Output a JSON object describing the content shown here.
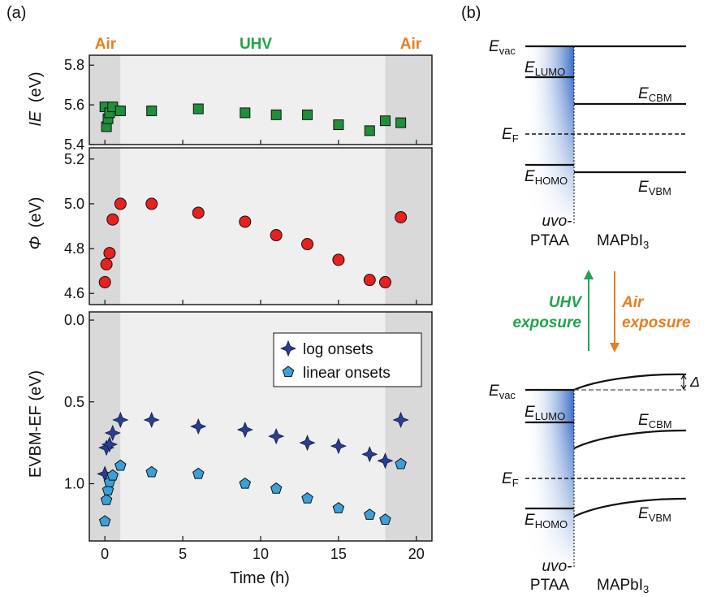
{
  "panel_a_label": "(a)",
  "panel_b_label": "(b)",
  "regions": {
    "air_left": "Air",
    "uhv": "UHV",
    "air_right": "Air"
  },
  "colors": {
    "air": "#e87d22",
    "uhv": "#22a34a",
    "shade_air": "#d9d9d9",
    "shade_uhv": "#efefef",
    "square": "#1f8f3a",
    "circle": "#e8201e",
    "star": "#2a3d8f",
    "pentagon": "#3aa0d8",
    "arrow_up": "#22a34a",
    "arrow_down": "#e87d22",
    "ptaa_blue": "#3b6fc8"
  },
  "chart_data": [
    {
      "type": "scatter",
      "ylabel_main": "IE",
      "ylabel_unit": "(eV)",
      "ylim": [
        5.4,
        5.85
      ],
      "xlim": [
        -1,
        21
      ],
      "yticks": [
        "5.4",
        "5.6",
        "5.8"
      ],
      "ytick_values": [
        5.4,
        5.6,
        5.8
      ],
      "series": [
        {
          "marker": "square",
          "x": [
            0.0,
            0.1,
            0.2,
            0.3,
            0.5,
            1.0,
            3,
            6,
            9,
            11,
            13,
            15,
            17,
            18,
            19
          ],
          "y": [
            5.59,
            5.49,
            5.53,
            5.56,
            5.59,
            5.57,
            5.57,
            5.58,
            5.56,
            5.55,
            5.55,
            5.5,
            5.47,
            5.52,
            5.51
          ]
        }
      ]
    },
    {
      "type": "scatter",
      "ylabel_main": "Φ",
      "ylabel_unit": "(eV)",
      "ylim": [
        4.55,
        5.25
      ],
      "xlim": [
        -1,
        21
      ],
      "yticks": [
        "4.6",
        "4.8",
        "5.0",
        "5.2"
      ],
      "ytick_values": [
        4.6,
        4.8,
        5.0,
        5.2
      ],
      "series": [
        {
          "marker": "circle",
          "x": [
            0.0,
            0.1,
            0.3,
            0.5,
            1.0,
            3,
            6,
            9,
            11,
            13,
            15,
            17,
            18,
            19
          ],
          "y": [
            4.65,
            4.73,
            4.78,
            4.93,
            5.0,
            5.0,
            4.96,
            4.92,
            4.86,
            4.82,
            4.75,
            4.66,
            4.65,
            4.94
          ]
        }
      ]
    },
    {
      "type": "scatter",
      "ylabel": "EVBM-EF (eV)",
      "ylim": [
        -0.05,
        1.35
      ],
      "y_inverted": true,
      "xlim": [
        -1,
        21
      ],
      "xticks": [
        "0",
        "5",
        "10",
        "15",
        "20"
      ],
      "xtick_values": [
        0,
        5,
        10,
        15,
        20
      ],
      "yticks": [
        "0.0",
        "0.5",
        "1.0"
      ],
      "ytick_values": [
        0.0,
        0.5,
        1.0
      ],
      "xlabel": "Time (h)",
      "legend_position": "top-right",
      "series": [
        {
          "name": "log onsets",
          "marker": "star",
          "x": [
            0.0,
            0.1,
            0.3,
            0.5,
            1.0,
            3,
            6,
            9,
            11,
            13,
            15,
            17,
            18,
            19
          ],
          "y": [
            0.94,
            0.78,
            0.76,
            0.69,
            0.61,
            0.61,
            0.65,
            0.67,
            0.71,
            0.75,
            0.77,
            0.82,
            0.86,
            0.61
          ]
        },
        {
          "name": "linear onsets",
          "marker": "pentagon",
          "x": [
            0.0,
            0.1,
            0.2,
            0.3,
            0.5,
            1.0,
            3,
            6,
            9,
            11,
            13,
            15,
            17,
            18,
            19
          ],
          "y": [
            1.23,
            1.1,
            1.04,
            0.99,
            0.95,
            0.89,
            0.93,
            0.94,
            1.0,
            1.03,
            1.09,
            1.15,
            1.19,
            1.22,
            0.88
          ]
        }
      ]
    }
  ],
  "diagram": {
    "evac": "E",
    "evac_sub": "vac",
    "elumo": "E",
    "elumo_sub": "LUMO",
    "ecbm": "E",
    "ecbm_sub": "CBM",
    "ef": "E",
    "ef_sub": "F",
    "ehomo": "E",
    "ehomo_sub": "HOMO",
    "evbm": "E",
    "evbm_sub": "VBM",
    "uvo": "uvo-",
    "ptaa": "PTAA",
    "mapbi": "MAPbI",
    "mapbi_sub": "3",
    "uhv_word1": "UHV",
    "uhv_word2": "exposure",
    "air_word1": "Air",
    "air_word2": "exposure",
    "delta": "Δ"
  }
}
